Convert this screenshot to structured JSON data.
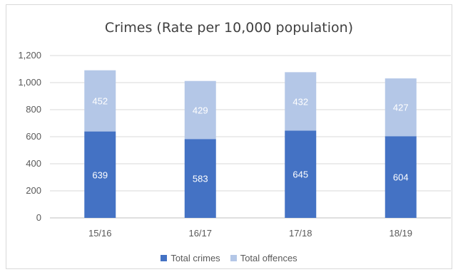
{
  "chart_data": {
    "type": "bar",
    "stacked": true,
    "title": "Crimes (Rate per 10,000 population)",
    "categories": [
      "15/16",
      "16/17",
      "17/18",
      "18/19"
    ],
    "series": [
      {
        "name": "Total crimes",
        "values": [
          639,
          583,
          645,
          604
        ],
        "color": "#4472c4"
      },
      {
        "name": "Total offences",
        "values": [
          452,
          429,
          432,
          427
        ],
        "color": "#b4c7e7"
      }
    ],
    "ylim": [
      0,
      1200
    ],
    "yticks": [
      "0",
      "200",
      "400",
      "600",
      "800",
      "1,000",
      "1,200"
    ],
    "ytick_values": [
      0,
      200,
      400,
      600,
      800,
      1000,
      1200
    ],
    "grid": true,
    "legend_position": "bottom",
    "data_labels": true
  }
}
